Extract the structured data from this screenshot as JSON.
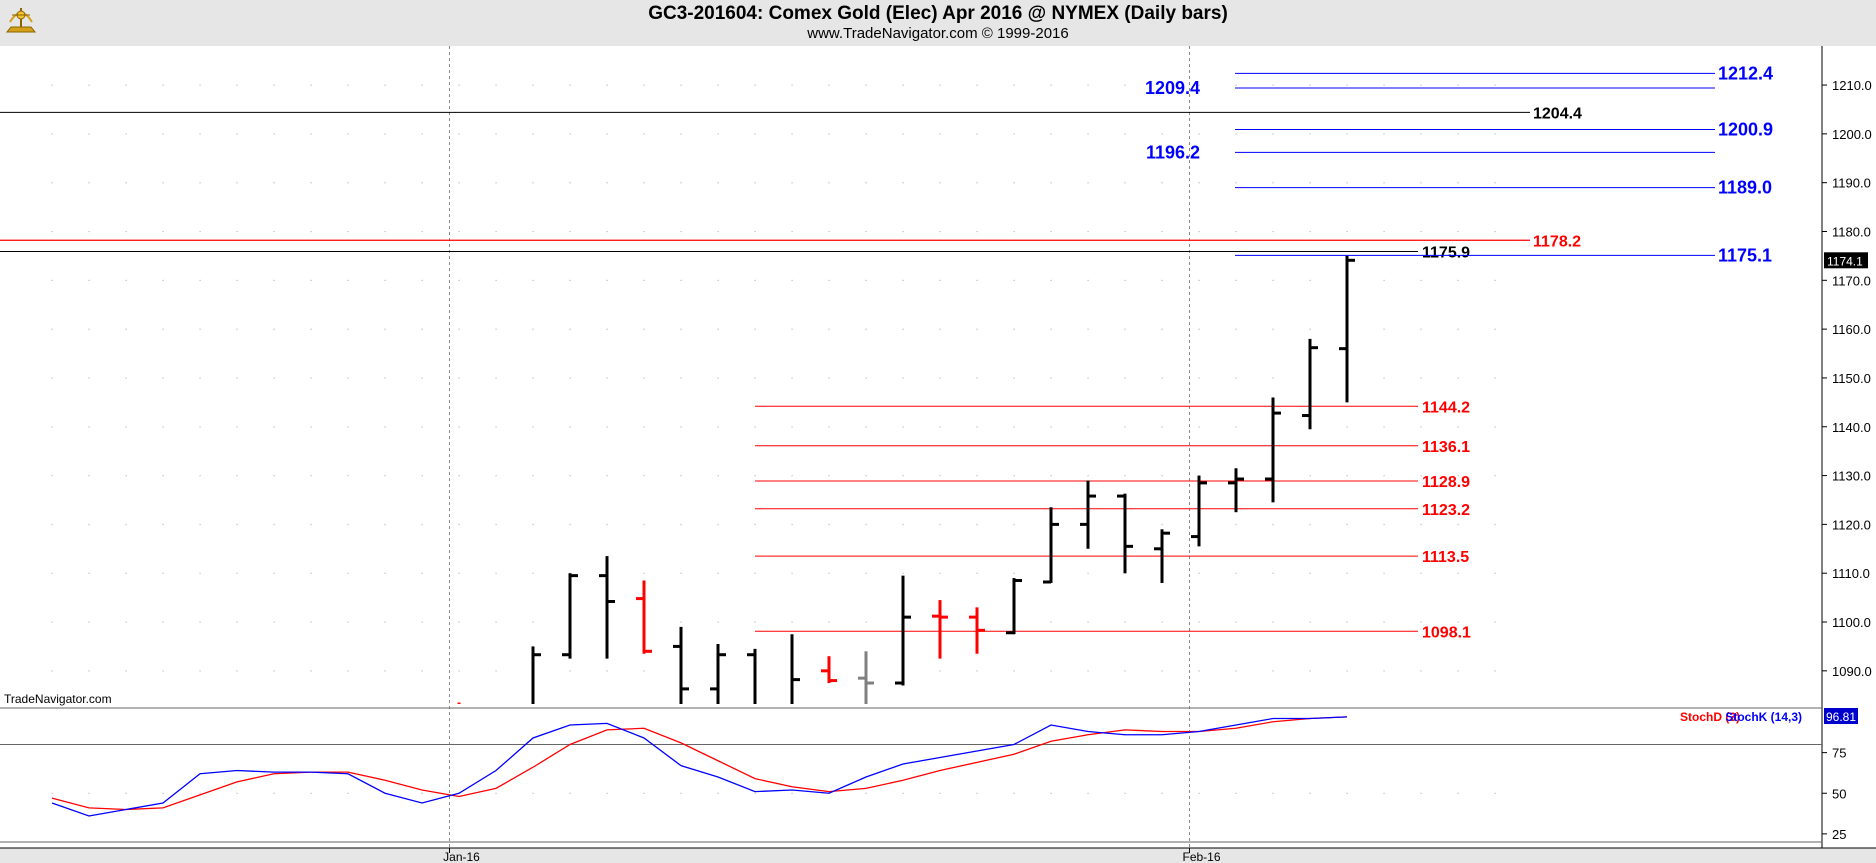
{
  "header": {
    "title": "GC3-201604:  Comex Gold (Elec) Apr 2016 @ NYMEX  (Daily bars)",
    "subtitle": "www.TradeNavigator.com © 1999-2016"
  },
  "watermark": "TradeNavigator.com",
  "colors": {
    "up": "#000000",
    "down": "#ff0000",
    "neutral": "#808080",
    "projection": "#0000ff",
    "retracement": "#ff0000",
    "stochK": "#0000ff",
    "stochD": "#ff0000"
  },
  "chart_data": [
    {
      "type": "ohlc",
      "scale": "price",
      "ylim": [
        1083,
        1218
      ],
      "y_ticks": [
        "1090.0",
        "1100.0",
        "1110.0",
        "1120.0",
        "1130.0",
        "1140.0",
        "1150.0",
        "1160.0",
        "1170.0",
        "1180.0",
        "1190.0",
        "1200.0",
        "1210.0"
      ],
      "x_labels": [
        {
          "label": "Jan-16",
          "bar": 10.5
        },
        {
          "label": "Feb-16",
          "bar": 30.5
        }
      ],
      "last_price": "1174.1",
      "bars": [
        {
          "i": 11,
          "o": 1082.5,
          "h": 1083.5,
          "l": 1082.0,
          "c": 1082.5,
          "color": "down"
        },
        {
          "i": 13,
          "o": 1076.0,
          "h": 1095.0,
          "l": 1075.0,
          "c": 1093.3,
          "color": "up"
        },
        {
          "i": 14,
          "o": 1093.3,
          "h": 1110.0,
          "l": 1092.5,
          "c": 1109.5,
          "color": "up"
        },
        {
          "i": 15,
          "o": 1109.5,
          "h": 1113.5,
          "l": 1092.5,
          "c": 1104.2,
          "color": "up"
        },
        {
          "i": 16,
          "o": 1104.8,
          "h": 1108.5,
          "l": 1093.5,
          "c": 1094.0,
          "color": "down"
        },
        {
          "i": 17,
          "o": 1095.0,
          "h": 1099.0,
          "l": 1083.0,
          "c": 1086.3,
          "color": "up"
        },
        {
          "i": 18,
          "o": 1086.3,
          "h": 1095.5,
          "l": 1082.0,
          "c": 1093.3,
          "color": "up"
        },
        {
          "i": 19,
          "o": 1093.3,
          "h": 1094.5,
          "l": 1082.0,
          "c": 1083.0,
          "color": "up"
        },
        {
          "i": 20,
          "o": 1083.0,
          "h": 1097.5,
          "l": 1082.0,
          "c": 1088.2,
          "color": "up"
        },
        {
          "i": 21,
          "o": 1090.0,
          "h": 1093.0,
          "l": 1087.5,
          "c": 1088.0,
          "color": "down"
        },
        {
          "i": 22,
          "o": 1088.5,
          "h": 1094.0,
          "l": 1083.0,
          "c": 1087.5,
          "color": "neutral"
        },
        {
          "i": 23,
          "o": 1087.5,
          "h": 1109.5,
          "l": 1087.0,
          "c": 1101.0,
          "color": "up"
        },
        {
          "i": 24,
          "o": 1101.2,
          "h": 1104.5,
          "l": 1092.5,
          "c": 1101.0,
          "color": "down"
        },
        {
          "i": 25,
          "o": 1101.0,
          "h": 1103.0,
          "l": 1093.5,
          "c": 1098.3,
          "color": "down"
        },
        {
          "i": 26,
          "o": 1097.8,
          "h": 1109.0,
          "l": 1097.5,
          "c": 1108.5,
          "color": "up"
        },
        {
          "i": 27,
          "o": 1108.2,
          "h": 1123.5,
          "l": 1108.0,
          "c": 1120.0,
          "color": "up"
        },
        {
          "i": 28,
          "o": 1120.0,
          "h": 1129.0,
          "l": 1115.0,
          "c": 1125.8,
          "color": "up"
        },
        {
          "i": 29,
          "o": 1125.8,
          "h": 1126.3,
          "l": 1110.0,
          "c": 1115.5,
          "color": "up"
        },
        {
          "i": 30,
          "o": 1115.0,
          "h": 1119.0,
          "l": 1108.0,
          "c": 1118.2,
          "color": "up"
        },
        {
          "i": 31,
          "o": 1117.5,
          "h": 1130.0,
          "l": 1115.5,
          "c": 1128.5,
          "color": "up"
        },
        {
          "i": 32,
          "o": 1128.5,
          "h": 1131.5,
          "l": 1122.5,
          "c": 1129.3,
          "color": "up"
        },
        {
          "i": 33,
          "o": 1129.3,
          "h": 1146.0,
          "l": 1124.5,
          "c": 1142.8,
          "color": "up"
        },
        {
          "i": 34,
          "o": 1142.3,
          "h": 1158.0,
          "l": 1139.5,
          "c": 1156.2,
          "color": "up"
        },
        {
          "i": 35,
          "o": 1156.0,
          "h": 1175.0,
          "l": 1145.0,
          "c": 1174.1,
          "color": "up"
        }
      ],
      "levels": [
        {
          "value": 1212.4,
          "label": "1212.4",
          "kind": "projection",
          "side": "right"
        },
        {
          "value": 1209.4,
          "label": "1209.4",
          "kind": "projection",
          "side": "left"
        },
        {
          "value": 1204.4,
          "label": "1204.4",
          "kind": "horizontal",
          "side": "right"
        },
        {
          "value": 1200.9,
          "label": "1200.9",
          "kind": "projection",
          "side": "right"
        },
        {
          "value": 1196.2,
          "label": "1196.2",
          "kind": "projection",
          "side": "left"
        },
        {
          "value": 1189.0,
          "label": "1189.0",
          "kind": "projection",
          "side": "right"
        },
        {
          "value": 1178.2,
          "label": "1178.2",
          "kind": "resistance",
          "side": "right"
        },
        {
          "value": 1175.9,
          "label": "1175.9",
          "kind": "horizontal",
          "side": "right"
        },
        {
          "value": 1175.1,
          "label": "1175.1",
          "kind": "projection",
          "side": "right"
        },
        {
          "value": 1144.2,
          "label": "1144.2",
          "kind": "retracement",
          "side": "right"
        },
        {
          "value": 1136.1,
          "label": "1136.1",
          "kind": "retracement",
          "side": "right"
        },
        {
          "value": 1128.9,
          "label": "1128.9",
          "kind": "retracement",
          "side": "right"
        },
        {
          "value": 1123.2,
          "label": "1123.2",
          "kind": "retracement",
          "side": "right"
        },
        {
          "value": 1113.5,
          "label": "1113.5",
          "kind": "retracement",
          "side": "right"
        },
        {
          "value": 1098.1,
          "label": "1098.1",
          "kind": "retracement",
          "side": "right"
        }
      ]
    },
    {
      "type": "line",
      "scale": "stochastic",
      "ylim": [
        20,
        100
      ],
      "y_ticks": [
        "25",
        "50",
        "75"
      ],
      "reference_lines": [
        20,
        80
      ],
      "last_value": "96.81",
      "series": [
        {
          "name": "StochK (14,3)",
          "color": "stochK",
          "x": [
            0,
            1,
            2,
            3,
            4,
            5,
            6,
            7,
            8,
            9,
            10,
            11,
            12,
            13,
            14,
            15,
            16,
            17,
            18,
            19,
            20,
            21,
            22,
            23,
            24,
            25,
            26,
            27,
            28,
            29,
            30,
            31,
            32,
            33,
            34,
            35
          ],
          "values": [
            44,
            36,
            40,
            44,
            62,
            64,
            63,
            63,
            62,
            50,
            44,
            50,
            64,
            84,
            92,
            93,
            84,
            67,
            60,
            51,
            52,
            50,
            60,
            68,
            72,
            76,
            80,
            92,
            88,
            86,
            86,
            88,
            92,
            96,
            96,
            97
          ]
        },
        {
          "name": "StochD (3)",
          "color": "stochD",
          "x": [
            0,
            1,
            2,
            3,
            4,
            5,
            6,
            7,
            8,
            9,
            10,
            11,
            12,
            13,
            14,
            15,
            16,
            17,
            18,
            19,
            20,
            21,
            22,
            23,
            24,
            25,
            26,
            27,
            28,
            29,
            30,
            31,
            32,
            33,
            34,
            35
          ],
          "values": [
            47,
            41,
            40,
            41,
            49,
            57,
            62,
            63,
            63,
            58,
            52,
            48,
            53,
            66,
            80,
            89,
            90,
            81,
            70,
            59,
            54,
            51,
            53,
            58,
            64,
            69,
            74,
            82,
            86,
            89,
            88,
            88,
            90,
            94,
            96,
            97
          ]
        }
      ]
    }
  ]
}
